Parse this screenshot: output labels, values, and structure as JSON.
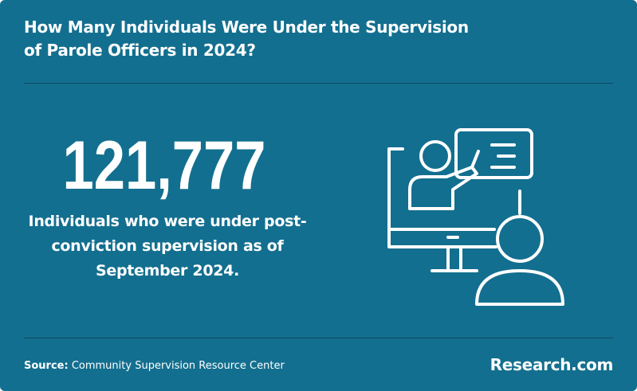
{
  "header": {
    "title": "How Many Individuals Were Under the Supervision of Parole Officers in 2024?"
  },
  "stat": {
    "value": "121,777",
    "description": "Individuals who were under post-conviction supervision as of September 2024."
  },
  "footer": {
    "source_label": "Source:",
    "source": "Community Supervision Resource Center",
    "brand": "Research.com"
  }
}
